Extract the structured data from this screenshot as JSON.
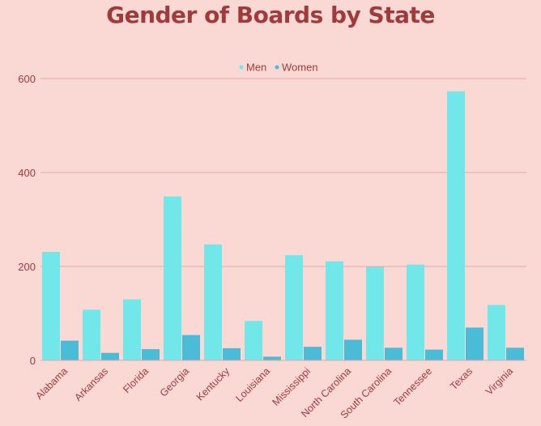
{
  "colors": {
    "background": "#fad9d5",
    "title": "#a13a3a",
    "text": "#a13a3a",
    "grid": "#e3a9a6",
    "men": "#72e7e9",
    "women": "#4bbcd7"
  },
  "chart_data": {
    "type": "bar",
    "title": "Gender of Boards by State",
    "xlabel": "",
    "ylabel": "",
    "ylim": [
      0,
      650
    ],
    "yticks": [
      0,
      200,
      400,
      600
    ],
    "grid": true,
    "legend_position": "top-center",
    "categories": [
      "Alabama",
      "Arkansas",
      "Florida",
      "Georgia",
      "Kentucky",
      "Louisiana",
      "Mississippi",
      "North Carolina",
      "South Carolina",
      "Tennessee",
      "Texas",
      "Virginia"
    ],
    "series": [
      {
        "name": "Men",
        "color": "#72e7e9",
        "values": [
          231,
          108,
          130,
          349,
          247,
          84,
          224,
          211,
          199,
          204,
          573,
          118
        ]
      },
      {
        "name": "Women",
        "color": "#4bbcd7",
        "values": [
          42,
          16,
          24,
          54,
          26,
          8,
          29,
          44,
          27,
          23,
          70,
          27
        ]
      }
    ]
  }
}
